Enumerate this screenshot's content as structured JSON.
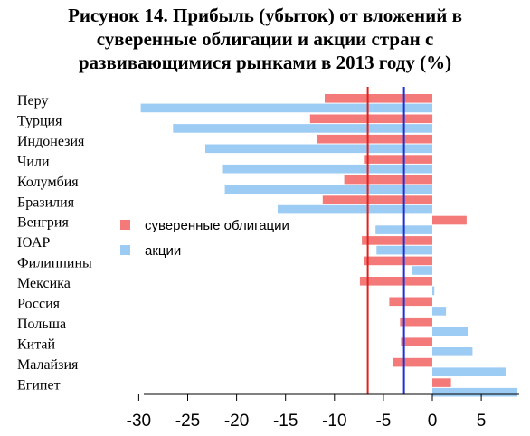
{
  "chart_data": {
    "type": "bar",
    "orientation": "horizontal",
    "title_lines": [
      "Рисунок 14. Прибыль (убыток) от вложений в",
      "суверенные облигации и акции стран с",
      "развивающимися рынками в 2013 году (%)"
    ],
    "categories": [
      "Перу",
      "Турция",
      "Индонезия",
      "Чили",
      "Колумбия",
      "Бразилия",
      "Венгрия",
      "ЮАР",
      "Филиппины",
      "Мексика",
      "Россия",
      "Польша",
      "Китай",
      "Малайзия",
      "Египет"
    ],
    "series": [
      {
        "name": "суверенные облигации",
        "color": "#f47a7a",
        "values": [
          -11.0,
          -12.5,
          -11.8,
          -6.9,
          -9.0,
          -11.2,
          3.5,
          -7.2,
          -7.0,
          -7.4,
          -4.4,
          -3.3,
          -3.2,
          -4.0,
          1.9
        ]
      },
      {
        "name": "акции",
        "color": "#9ccbf4",
        "values": [
          -29.8,
          -26.5,
          -23.2,
          -21.4,
          -21.2,
          -15.8,
          -5.8,
          -5.7,
          -2.1,
          0.2,
          1.4,
          3.7,
          4.1,
          7.5,
          8.7
        ]
      }
    ],
    "reference_lines": [
      {
        "value": -6.6,
        "color": "#e0201e"
      },
      {
        "value": -2.9,
        "color": "#2030d8"
      }
    ],
    "xlim": [
      -32,
      8.6
    ],
    "xticks": [
      -30,
      -25,
      -20,
      -15,
      -10,
      -5,
      0,
      5
    ],
    "legend": "middle-left",
    "grid": false
  }
}
